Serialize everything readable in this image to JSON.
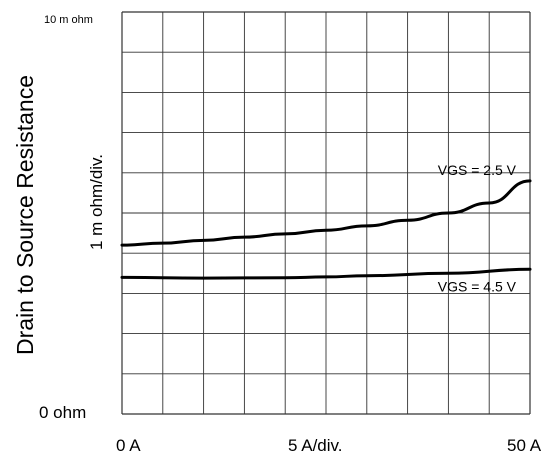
{
  "chart_data": {
    "type": "line",
    "x_tick_labels": {
      "start": "0  A",
      "middle": "5  A/div.",
      "end": "50 A"
    },
    "y_tick_labels": {
      "top": "10 m ohm",
      "bottom": "0  ohm"
    },
    "ylabel": "Drain to Source Resistance",
    "y_scale_label": "1 m ohm/div.",
    "xlim": [
      0,
      50
    ],
    "ylim": [
      0,
      10
    ],
    "x_division": 5,
    "y_division": 1,
    "grid": true,
    "series": [
      {
        "name": "VGS =  2.5 V",
        "color": "#000000",
        "x": [
          0,
          5,
          10,
          15,
          20,
          25,
          30,
          35,
          40,
          45,
          50
        ],
        "y": [
          4.2,
          4.25,
          4.32,
          4.4,
          4.48,
          4.57,
          4.68,
          4.82,
          5.0,
          5.25,
          5.8
        ]
      },
      {
        "name": "VGS = 4.5 V",
        "color": "#000000",
        "x": [
          0,
          10,
          20,
          25,
          30,
          40,
          50
        ],
        "y": [
          3.4,
          3.38,
          3.39,
          3.41,
          3.44,
          3.5,
          3.6
        ]
      }
    ]
  }
}
